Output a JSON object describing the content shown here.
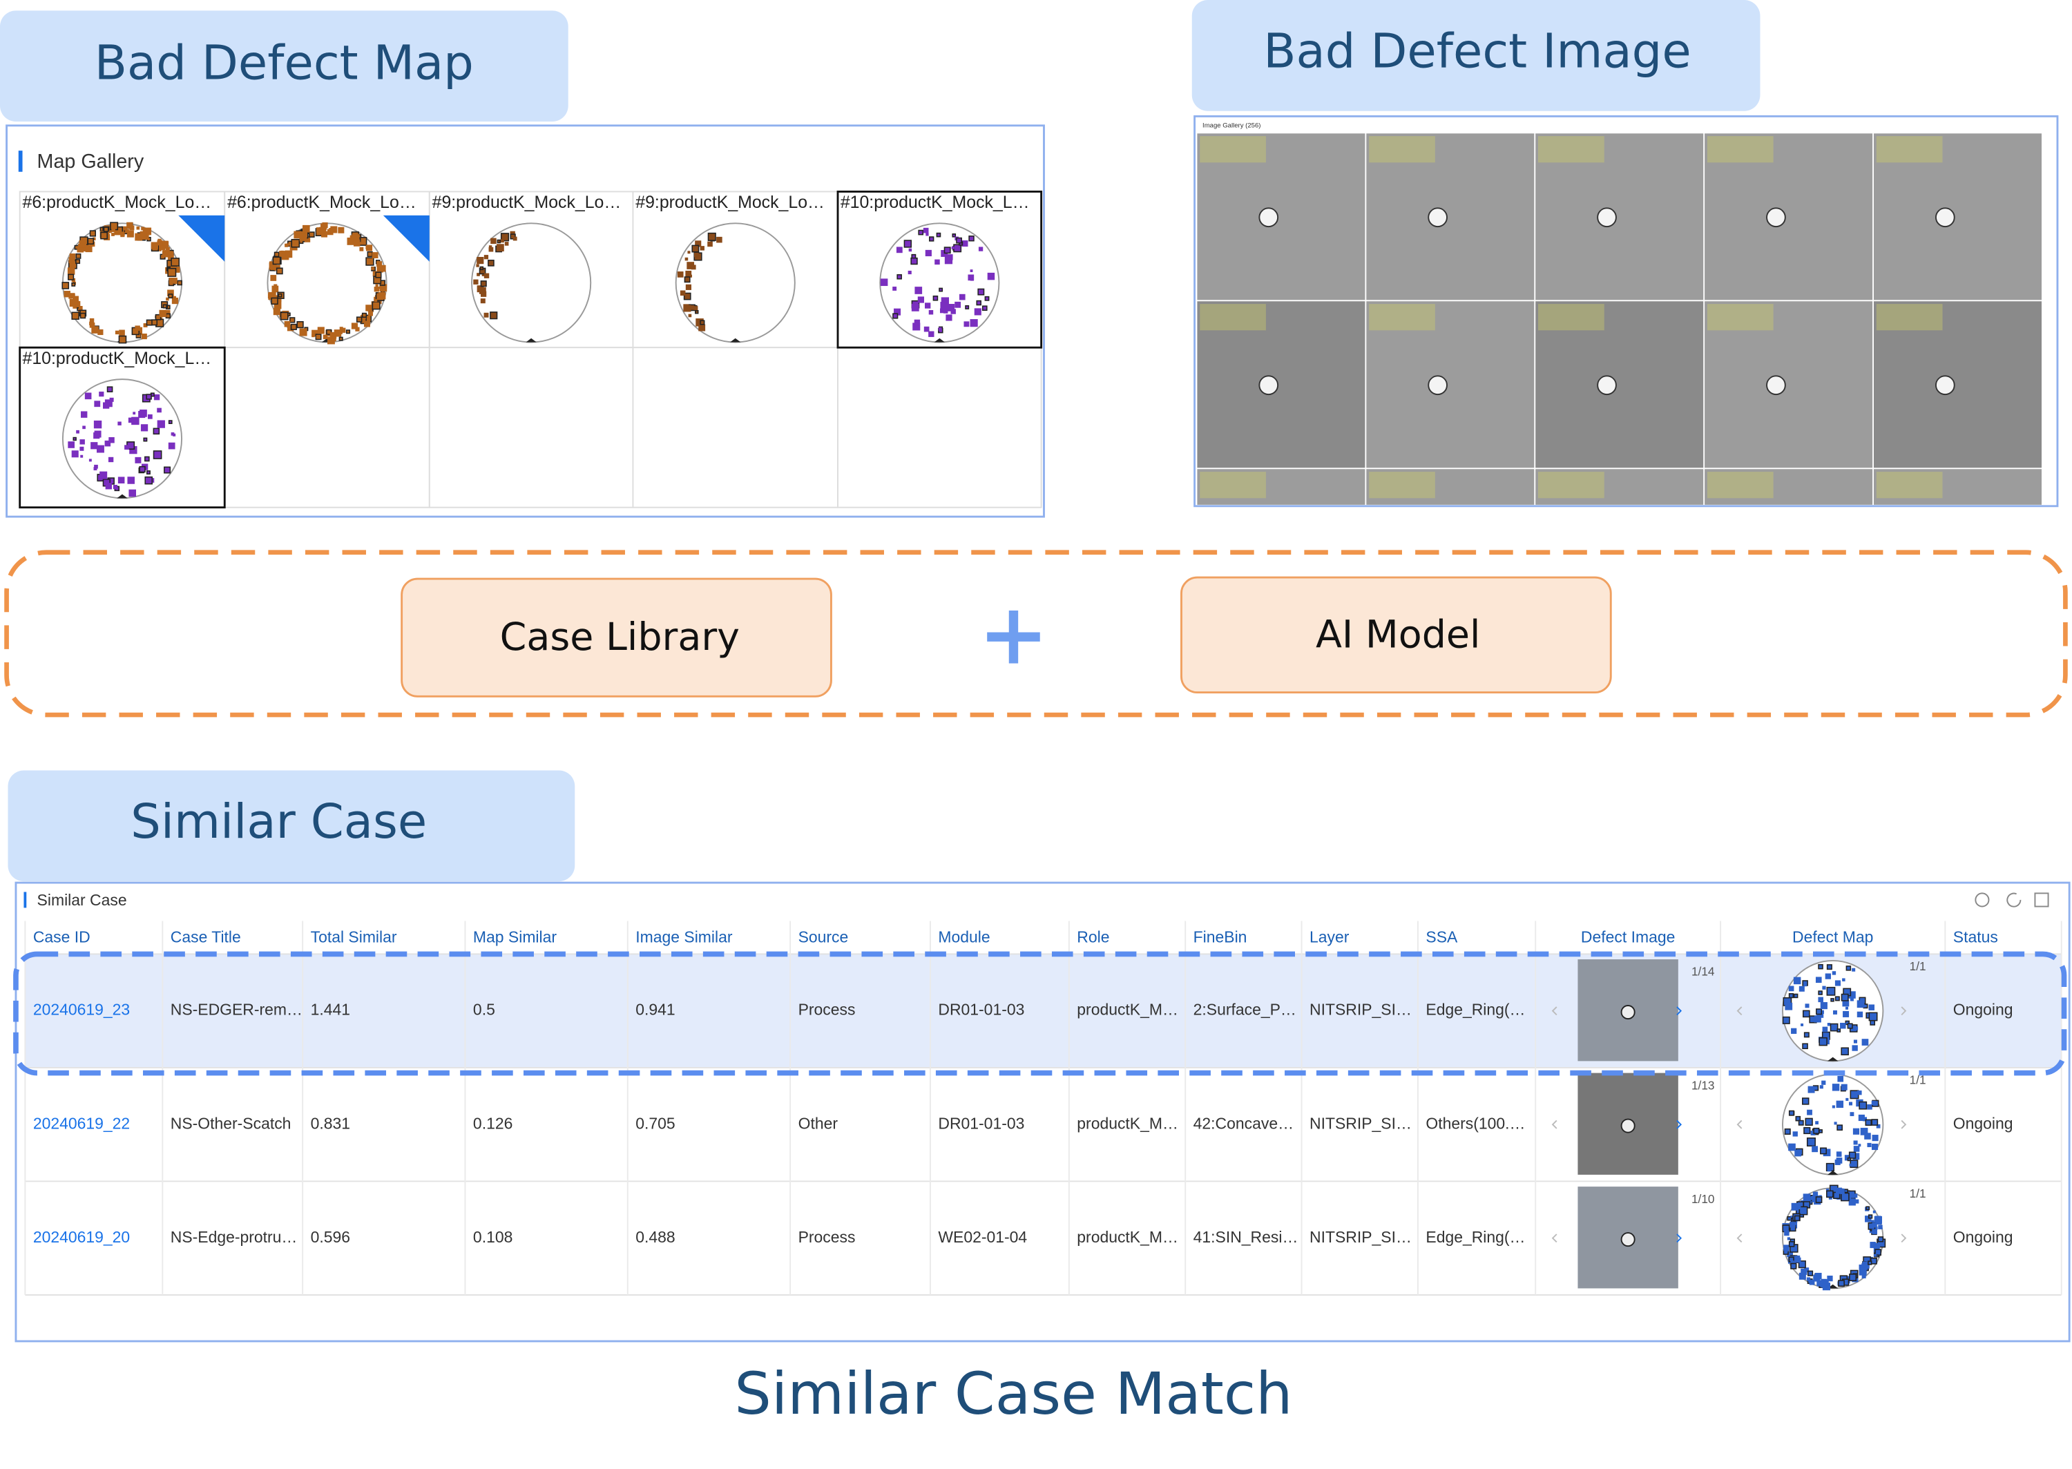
{
  "map_panel": {
    "heading": "Bad Defect Map",
    "gallery_title": "Map Gallery",
    "tiles": [
      "#6:productK_Mock_Lo…",
      "#6:productK_Mock_Lo…",
      "#9:productK_Mock_Lo…",
      "#9:productK_Mock_Lo…",
      "#10:productK_Mock_L…",
      "#10:productK_Mock_L…"
    ]
  },
  "image_panel": {
    "heading": "Bad Defect Image",
    "gallery_title": "Image Gallery (256)"
  },
  "middle": {
    "case_library": "Case Library",
    "ai_model": "AI Model"
  },
  "similar_case": {
    "heading": "Similar Case",
    "panel_title": "Similar Case",
    "table": {
      "columns": [
        "Case ID",
        "Case Title",
        "Total Similar",
        "Map Similar",
        "Image Similar",
        "Source",
        "Module",
        "Role",
        "FineBin",
        "Layer",
        "SSA",
        "Defect Image",
        "Defect Map",
        "Status"
      ],
      "rows": [
        [
          "20240619_23",
          "NS-EDGER-rem…",
          "1.441",
          "0.5",
          "0.941",
          "Process",
          "DR01-01-03",
          "productK_M…",
          "2:Surface_P…",
          "NITSRIP_SI…",
          "Edge_Ring(…",
          "1/14",
          "1/1",
          "Ongoing"
        ],
        [
          "20240619_22",
          "NS-Other-Scatch",
          "0.831",
          "0.126",
          "0.705",
          "Other",
          "DR01-01-03",
          "productK_M…",
          "42:Concave…",
          "NITSRIP_SI…",
          "Others(100.…",
          "1/13",
          "1/1",
          "Ongoing"
        ],
        [
          "20240619_20",
          "NS-Edge-protru…",
          "0.596",
          "0.108",
          "0.488",
          "Process",
          "WE02-01-04",
          "productK_M…",
          "41:SIN_Resi…",
          "NITSRIP_SI…",
          "Edge_Ring(…",
          "1/10",
          "1/1",
          "Ongoing"
        ]
      ]
    }
  },
  "footer": "Similar Case Match"
}
